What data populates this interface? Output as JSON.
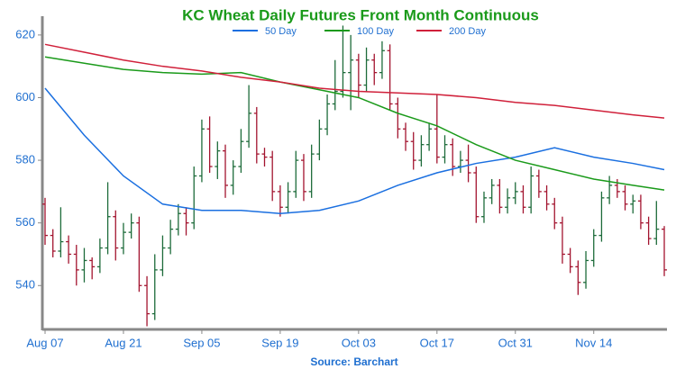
{
  "chart_data": {
    "type": "ohlc",
    "title": "KC Wheat Daily Futures Front Month Continuous",
    "source": "Source: Barchart",
    "categories": [
      "Aug 07",
      null,
      null,
      null,
      null,
      null,
      null,
      null,
      null,
      null,
      "Aug 21",
      null,
      null,
      null,
      null,
      null,
      null,
      null,
      null,
      null,
      "Sep 05",
      null,
      null,
      null,
      null,
      null,
      null,
      null,
      null,
      null,
      "Sep 19",
      null,
      null,
      null,
      null,
      null,
      null,
      null,
      null,
      null,
      "Oct 03",
      null,
      null,
      null,
      null,
      null,
      null,
      null,
      null,
      null,
      "Oct 17",
      null,
      null,
      null,
      null,
      null,
      null,
      null,
      null,
      null,
      "Oct 31",
      null,
      null,
      null,
      null,
      null,
      null,
      null,
      null,
      null,
      "Nov 14",
      null,
      null,
      null,
      null,
      null,
      null,
      null,
      null,
      null
    ],
    "open": [
      566,
      556,
      551,
      554,
      550,
      545,
      548,
      546,
      552,
      562,
      552,
      557,
      560,
      540,
      531,
      545,
      552,
      558,
      563,
      560,
      575,
      590,
      578,
      583,
      572,
      578,
      586,
      595,
      582,
      581,
      570,
      565,
      570,
      580,
      570,
      582,
      590,
      598,
      602,
      608,
      612,
      604,
      612,
      608,
      615,
      598,
      590,
      586,
      580,
      585,
      590,
      581,
      585,
      578,
      580,
      576,
      562,
      568,
      572,
      565,
      568,
      570,
      565,
      575,
      570,
      566,
      560,
      550,
      546,
      541,
      548,
      556,
      568,
      572,
      570,
      566,
      567,
      560,
      555,
      558
    ],
    "high": [
      568,
      558,
      565,
      556,
      553,
      552,
      549,
      555,
      573,
      564,
      560,
      563,
      562,
      543,
      550,
      556,
      561,
      566,
      565,
      578,
      593,
      594,
      586,
      585,
      580,
      590,
      604,
      597,
      584,
      583,
      572,
      573,
      583,
      582,
      585,
      593,
      601,
      612,
      623,
      620,
      614,
      616,
      614,
      618,
      617,
      600,
      592,
      589,
      588,
      592,
      601,
      588,
      587,
      583,
      585,
      578,
      570,
      574,
      574,
      571,
      573,
      572,
      578,
      577,
      572,
      568,
      562,
      552,
      548,
      551,
      558,
      570,
      575,
      574,
      572,
      569,
      569,
      562,
      567,
      559
    ],
    "low": [
      553,
      549,
      549,
      547,
      540,
      541,
      542,
      544,
      550,
      548,
      550,
      555,
      538,
      527,
      529,
      543,
      550,
      556,
      556,
      558,
      573,
      576,
      574,
      568,
      569,
      576,
      584,
      579,
      578,
      567,
      562,
      563,
      568,
      567,
      568,
      580,
      588,
      596,
      600,
      596,
      600,
      602,
      604,
      606,
      596,
      587,
      583,
      577,
      578,
      583,
      579,
      579,
      575,
      576,
      573,
      560,
      560,
      566,
      563,
      563,
      566,
      563,
      563,
      568,
      564,
      558,
      547,
      544,
      537,
      539,
      546,
      554,
      566,
      568,
      564,
      563,
      558,
      553,
      553,
      543
    ],
    "close": [
      556,
      551,
      554,
      550,
      545,
      548,
      546,
      552,
      562,
      552,
      557,
      560,
      540,
      531,
      545,
      552,
      558,
      563,
      560,
      575,
      590,
      578,
      583,
      572,
      578,
      586,
      595,
      582,
      581,
      570,
      565,
      570,
      580,
      570,
      582,
      590,
      598,
      602,
      608,
      612,
      604,
      612,
      608,
      615,
      598,
      590,
      586,
      580,
      585,
      590,
      581,
      585,
      578,
      580,
      576,
      562,
      568,
      572,
      565,
      568,
      570,
      565,
      575,
      570,
      566,
      560,
      550,
      546,
      541,
      548,
      556,
      568,
      572,
      570,
      566,
      567,
      560,
      555,
      558,
      545
    ],
    "up_color": "#1d6b3a",
    "down_color": "#a3142f",
    "series": [
      {
        "name": "50 Day",
        "color": "#1a6fe0",
        "x": [
          0,
          5,
          10,
          15,
          20,
          25,
          30,
          35,
          40,
          45,
          50,
          55,
          60,
          65,
          70,
          75,
          79
        ],
        "values": [
          603,
          588,
          575,
          566,
          564,
          564,
          563,
          564,
          567,
          572,
          576,
          579,
          581,
          584,
          581,
          579,
          577
        ]
      },
      {
        "name": "100 Day",
        "color": "#1a9a1a",
        "x": [
          0,
          5,
          10,
          15,
          20,
          25,
          30,
          35,
          40,
          45,
          50,
          55,
          60,
          65,
          70,
          75,
          79
        ],
        "values": [
          613,
          611,
          609,
          608,
          607.5,
          608,
          605,
          602.5,
          600,
          595,
          591,
          585,
          580,
          577,
          574,
          572,
          570.5
        ]
      },
      {
        "name": "200 Day",
        "color": "#d0203a",
        "x": [
          0,
          5,
          10,
          15,
          20,
          25,
          30,
          35,
          40,
          45,
          50,
          55,
          60,
          65,
          70,
          75,
          79
        ],
        "values": [
          617,
          614.5,
          612,
          610,
          608.5,
          606.5,
          605,
          603,
          602,
          601.5,
          601,
          600,
          598.5,
          597.5,
          596,
          594.5,
          593.5
        ]
      }
    ],
    "ylim": [
      526,
      626
    ],
    "yticks": [
      540,
      560,
      580,
      600,
      620
    ]
  }
}
